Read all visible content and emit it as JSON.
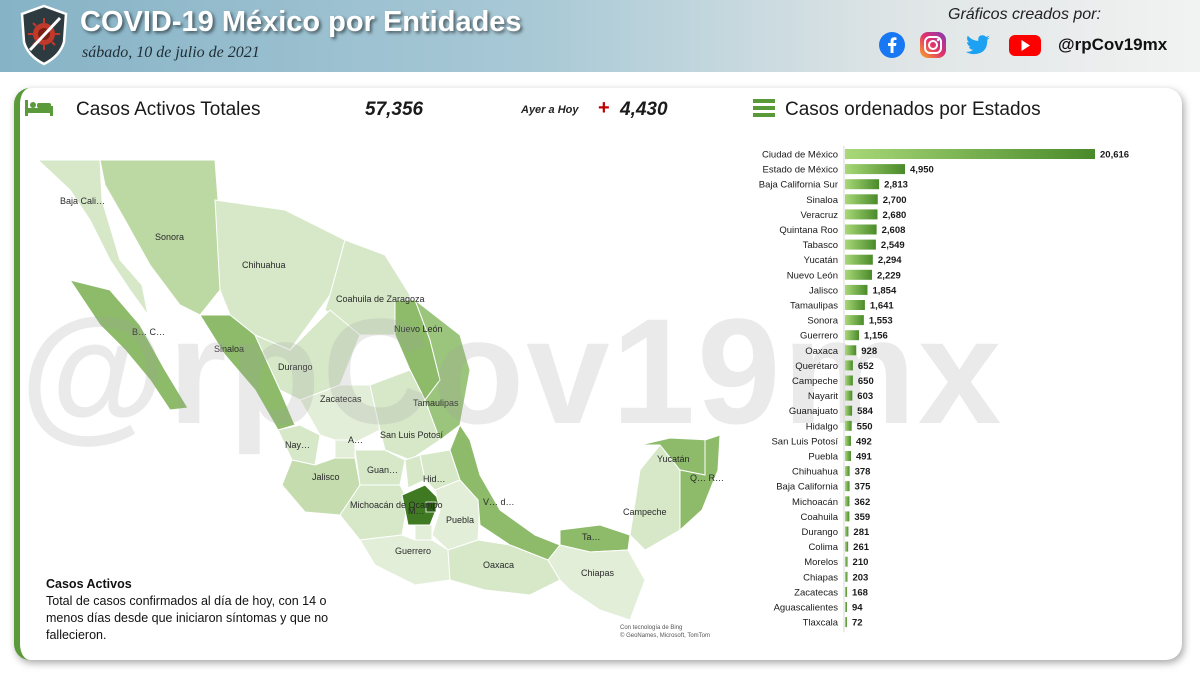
{
  "header": {
    "title": "COVID-19 México por Entidades",
    "date": "sábado, 10 de julio de 2021",
    "credits_label": "Gráficos creados por:",
    "handle": "@rpCov19mx",
    "social_icons": [
      "facebook-icon",
      "instagram-icon",
      "twitter-icon",
      "youtube-icon"
    ]
  },
  "kpi": {
    "label": "Casos Activos Totales",
    "value": "57,356",
    "ayer_label": "Ayer a Hoy",
    "ayer_sign": "+",
    "ayer_value": "4,430"
  },
  "list_title": "Casos ordenados por Estados",
  "map": {
    "labels": [
      "Baja Cali…",
      "Sonora",
      "Chihuahua",
      "Coahuila de Zaragoza",
      "Nuevo León",
      "B… C…",
      "Sinaloa",
      "Durango",
      "Tamaulipas",
      "Zacatecas",
      "San Luis Potosí",
      "Nay…",
      "A…",
      "Guan…",
      "Jalisco",
      "Hid…",
      "Michoacán de Ocampo",
      "M…",
      "Puebla",
      "V… d…",
      "Yucatán",
      "Q… R…",
      "Campeche",
      "Ta…",
      "Guerrero",
      "Oaxaca",
      "Chiapas"
    ],
    "credit_line1": "Con tecnología de Bing",
    "credit_line2": "© GeoNames, Microsoft, TomTom"
  },
  "watermark": "@rpCov19mx",
  "note": {
    "title": "Casos Activos",
    "text": "Total de casos confirmados al día de hoy, con 14 o menos días desde que iniciaron síntomas y que no fallecieron."
  },
  "colors": {
    "bar_dark": "#4a8a2a",
    "bar_light": "#a8d878",
    "accent": "#5a9a3a",
    "plus": "#c00000"
  },
  "chart_data": {
    "type": "bar",
    "orientation": "horizontal",
    "categories": [
      "Ciudad de México",
      "Estado de México",
      "Baja California Sur",
      "Sinaloa",
      "Veracruz",
      "Quintana Roo",
      "Tabasco",
      "Yucatán",
      "Nuevo León",
      "Jalisco",
      "Tamaulipas",
      "Sonora",
      "Guerrero",
      "Oaxaca",
      "Querétaro",
      "Campeche",
      "Nayarit",
      "Guanajuato",
      "Hidalgo",
      "San Luis Potosí",
      "Puebla",
      "Chihuahua",
      "Baja California",
      "Michoacán",
      "Coahuila",
      "Durango",
      "Colima",
      "Morelos",
      "Chiapas",
      "Zacatecas",
      "Aguascalientes",
      "Tlaxcala"
    ],
    "values": [
      20616,
      4950,
      2813,
      2700,
      2680,
      2608,
      2549,
      2294,
      2229,
      1854,
      1641,
      1553,
      1156,
      928,
      652,
      650,
      603,
      584,
      550,
      492,
      491,
      378,
      375,
      362,
      359,
      281,
      261,
      210,
      203,
      168,
      94,
      72
    ],
    "value_labels": [
      "20,616",
      "4,950",
      "2,813",
      "2,700",
      "2,680",
      "2,608",
      "2,549",
      "2,294",
      "2,229",
      "1,854",
      "1,641",
      "1,553",
      "1,156",
      "928",
      "652",
      "650",
      "603",
      "584",
      "550",
      "492",
      "491",
      "378",
      "375",
      "362",
      "359",
      "281",
      "261",
      "210",
      "203",
      "168",
      "94",
      "72"
    ]
  }
}
